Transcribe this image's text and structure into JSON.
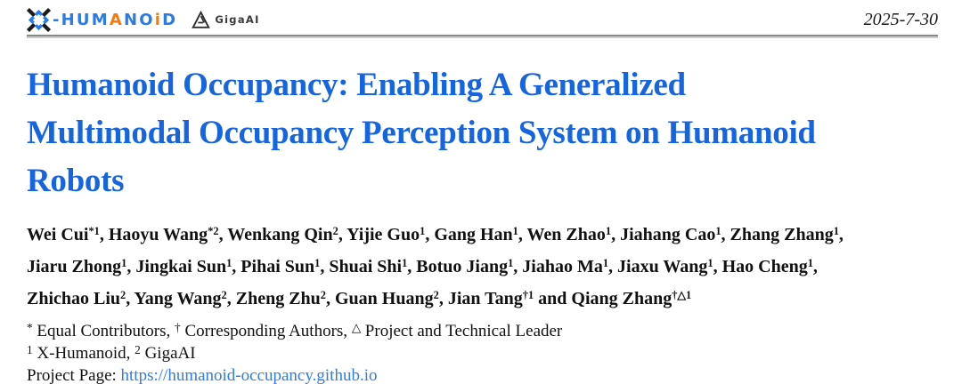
{
  "header": {
    "x_humanoid_wordmark": [
      {
        "text": "-HUM",
        "color": "#2a7ae8"
      },
      {
        "text": "A",
        "color": "#f5790f"
      },
      {
        "text": "NO",
        "color": "#2a7ae8"
      },
      {
        "text": "i",
        "color": "#f5790f"
      },
      {
        "text": "D",
        "color": "#2a7ae8"
      }
    ],
    "gigaai_label": "GigaAI",
    "date": "2025-7-30"
  },
  "title": {
    "color": "#1565e0",
    "lines": [
      "Humanoid Occupancy: Enabling A Generalized",
      "Multimodal Occupancy Perception System on Humanoid",
      "Robots"
    ]
  },
  "authors": {
    "lines": [
      [
        {
          "name": "Wei Cui",
          "sup": "*1",
          "post": ", "
        },
        {
          "name": "Haoyu Wang",
          "sup": "*2",
          "post": ", "
        },
        {
          "name": "Wenkang Qin",
          "sup": "2",
          "post": ", "
        },
        {
          "name": "Yijie Guo",
          "sup": "1",
          "post": ", "
        },
        {
          "name": "Gang Han",
          "sup": "1",
          "post": ", "
        },
        {
          "name": "Wen Zhao",
          "sup": "1",
          "post": ", "
        },
        {
          "name": "Jiahang Cao",
          "sup": "1",
          "post": ", "
        },
        {
          "name": "Zhang Zhang",
          "sup": "1",
          "post": ","
        }
      ],
      [
        {
          "name": "Jiaru Zhong",
          "sup": "1",
          "post": ", "
        },
        {
          "name": "Jingkai Sun",
          "sup": "1",
          "post": ", "
        },
        {
          "name": "Pihai Sun",
          "sup": "1",
          "post": ", "
        },
        {
          "name": "Shuai Shi",
          "sup": "1",
          "post": ", "
        },
        {
          "name": "Botuo Jiang",
          "sup": "1",
          "post": ", "
        },
        {
          "name": "Jiahao Ma",
          "sup": "1",
          "post": ", "
        },
        {
          "name": "Jiaxu Wang",
          "sup": "1",
          "post": ", "
        },
        {
          "name": "Hao Cheng",
          "sup": "1",
          "post": ","
        }
      ],
      [
        {
          "name": "Zhichao Liu",
          "sup": "2",
          "post": ", "
        },
        {
          "name": "Yang Wang",
          "sup": "2",
          "post": ", "
        },
        {
          "name": "Zheng Zhu",
          "sup": "2",
          "post": ", "
        },
        {
          "name": "Guan Huang",
          "sup": "2",
          "post": ", "
        },
        {
          "name": "Jian Tang",
          "sup": "†1",
          "post": " and "
        },
        {
          "name": "Qiang Zhang",
          "sup": "†△1",
          "post": ""
        }
      ]
    ]
  },
  "footnotes": {
    "contributors": [
      {
        "sup": "*",
        "text": " Equal Contributors, "
      },
      {
        "sup": "†",
        "text": " Corresponding Authors, "
      },
      {
        "sup": "△",
        "text": " Project and Technical Leader"
      }
    ],
    "affiliations": [
      {
        "sup": "1",
        "text": " X-Humanoid, "
      },
      {
        "sup": "2",
        "text": " GigaAI"
      }
    ]
  },
  "project": {
    "label": "Project Page: ",
    "url": "https://humanoid-occupancy.github.io",
    "link_color": "#2e7bf0"
  }
}
